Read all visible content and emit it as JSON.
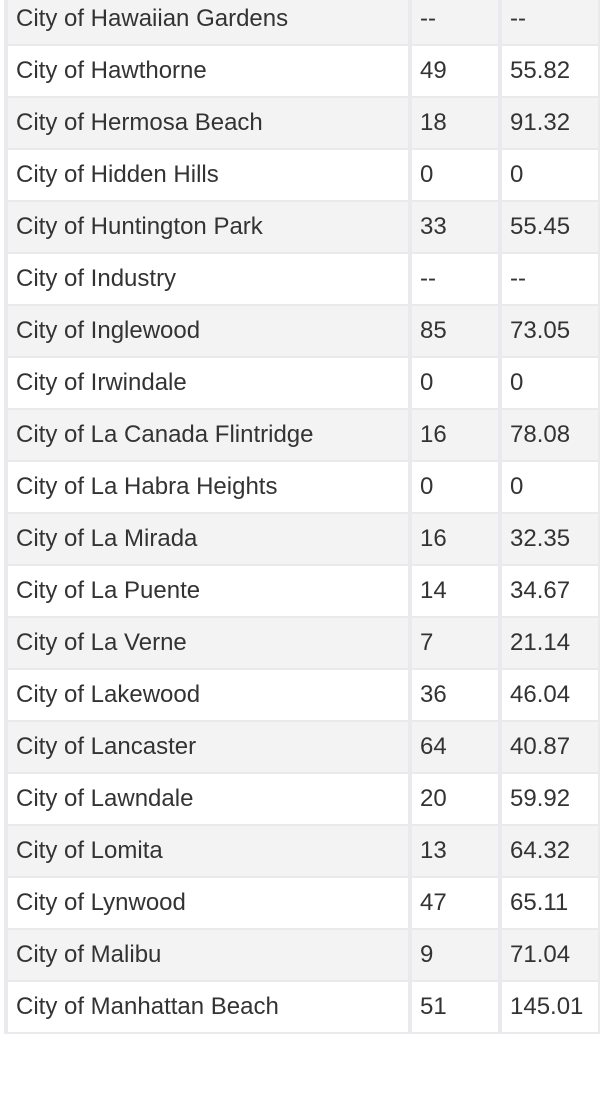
{
  "table": {
    "rows": [
      {
        "city": "City of Hawaiian Gardens",
        "count": "--",
        "rate": "--"
      },
      {
        "city": "City of Hawthorne",
        "count": "49",
        "rate": "55.82"
      },
      {
        "city": "City of Hermosa Beach",
        "count": "18",
        "rate": "91.32"
      },
      {
        "city": "City of Hidden Hills",
        "count": "0",
        "rate": "0"
      },
      {
        "city": "City of Huntington Park",
        "count": "33",
        "rate": "55.45"
      },
      {
        "city": "City of Industry",
        "count": "--",
        "rate": "--"
      },
      {
        "city": "City of Inglewood",
        "count": "85",
        "rate": "73.05"
      },
      {
        "city": "City of Irwindale",
        "count": "0",
        "rate": "0"
      },
      {
        "city": "City of La Canada Flintridge",
        "count": "16",
        "rate": "78.08"
      },
      {
        "city": "City of La Habra Heights",
        "count": "0",
        "rate": "0"
      },
      {
        "city": "City of La Mirada",
        "count": "16",
        "rate": "32.35"
      },
      {
        "city": "City of La Puente",
        "count": "14",
        "rate": "34.67"
      },
      {
        "city": "City of La Verne",
        "count": "7",
        "rate": "21.14"
      },
      {
        "city": "City of Lakewood",
        "count": "36",
        "rate": "46.04"
      },
      {
        "city": "City of Lancaster",
        "count": "64",
        "rate": "40.87"
      },
      {
        "city": "City of Lawndale",
        "count": "20",
        "rate": "59.92"
      },
      {
        "city": "City of Lomita",
        "count": "13",
        "rate": "64.32"
      },
      {
        "city": "City of Lynwood",
        "count": "47",
        "rate": "65.11"
      },
      {
        "city": "City of Malibu",
        "count": "9",
        "rate": "71.04"
      },
      {
        "city": "City of Manhattan Beach",
        "count": "51",
        "rate": "145.01"
      }
    ]
  }
}
